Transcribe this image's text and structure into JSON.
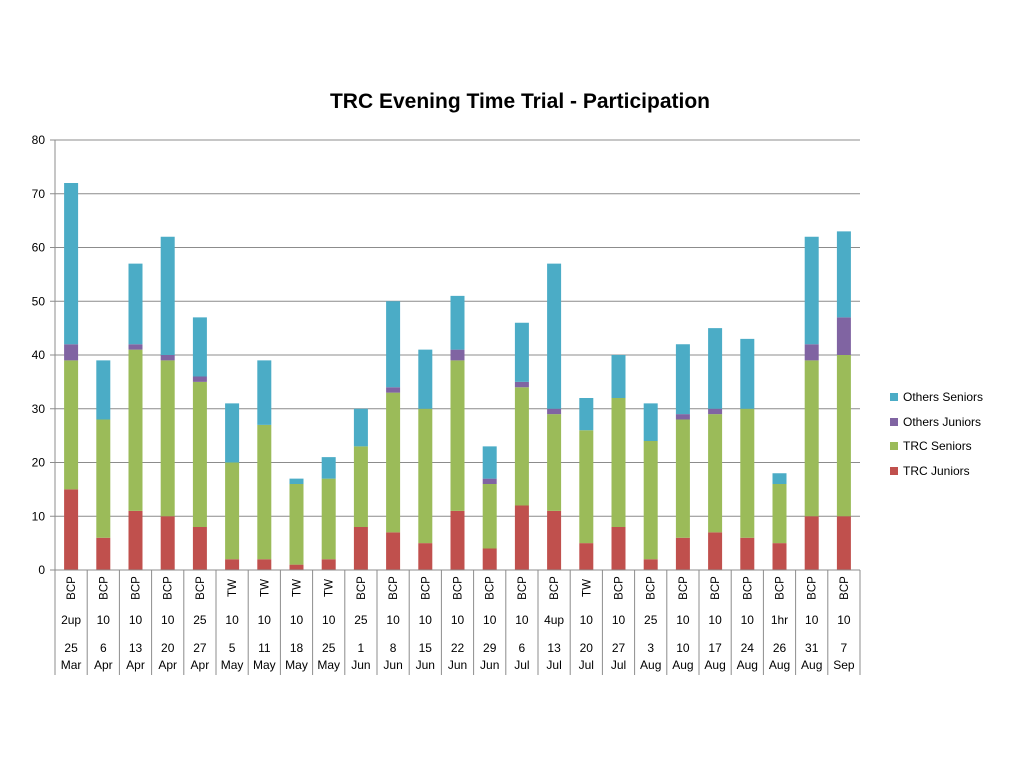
{
  "chart_data": {
    "type": "bar",
    "stacked": true,
    "title": "TRC Evening Time Trial - Participation",
    "ylim": [
      0,
      80
    ],
    "yticks": [
      0,
      10,
      20,
      30,
      40,
      50,
      60,
      70,
      80
    ],
    "grid": true,
    "legend_position": "right",
    "categories": [
      {
        "course": "BCP",
        "distance": "2up",
        "day": "25",
        "month": "Mar"
      },
      {
        "course": "BCP",
        "distance": "10",
        "day": "6",
        "month": "Apr"
      },
      {
        "course": "BCP",
        "distance": "10",
        "day": "13",
        "month": "Apr"
      },
      {
        "course": "BCP",
        "distance": "10",
        "day": "20",
        "month": "Apr"
      },
      {
        "course": "BCP",
        "distance": "25",
        "day": "27",
        "month": "Apr"
      },
      {
        "course": "TW",
        "distance": "10",
        "day": "5",
        "month": "May"
      },
      {
        "course": "TW",
        "distance": "10",
        "day": "11",
        "month": "May"
      },
      {
        "course": "TW",
        "distance": "10",
        "day": "18",
        "month": "May"
      },
      {
        "course": "TW",
        "distance": "10",
        "day": "25",
        "month": "May"
      },
      {
        "course": "BCP",
        "distance": "25",
        "day": "1",
        "month": "Jun"
      },
      {
        "course": "BCP",
        "distance": "10",
        "day": "8",
        "month": "Jun"
      },
      {
        "course": "BCP",
        "distance": "10",
        "day": "15",
        "month": "Jun"
      },
      {
        "course": "BCP",
        "distance": "10",
        "day": "22",
        "month": "Jun"
      },
      {
        "course": "BCP",
        "distance": "10",
        "day": "29",
        "month": "Jun"
      },
      {
        "course": "BCP",
        "distance": "10",
        "day": "6",
        "month": "Jul"
      },
      {
        "course": "BCP",
        "distance": "4up",
        "day": "13",
        "month": "Jul"
      },
      {
        "course": "TW",
        "distance": "10",
        "day": "20",
        "month": "Jul"
      },
      {
        "course": "BCP",
        "distance": "10",
        "day": "27",
        "month": "Jul"
      },
      {
        "course": "BCP",
        "distance": "25",
        "day": "3",
        "month": "Aug"
      },
      {
        "course": "BCP",
        "distance": "10",
        "day": "10",
        "month": "Aug"
      },
      {
        "course": "BCP",
        "distance": "10",
        "day": "17",
        "month": "Aug"
      },
      {
        "course": "BCP",
        "distance": "10",
        "day": "24",
        "month": "Aug"
      },
      {
        "course": "BCP",
        "distance": "1hr",
        "day": "26",
        "month": "Aug"
      },
      {
        "course": "BCP",
        "distance": "10",
        "day": "31",
        "month": "Aug"
      },
      {
        "course": "BCP",
        "distance": "10",
        "day": "7",
        "month": "Sep"
      }
    ],
    "series": [
      {
        "name": "TRC Juniors",
        "color": "#c0504d",
        "values": [
          15,
          6,
          11,
          10,
          8,
          2,
          2,
          1,
          2,
          8,
          7,
          5,
          11,
          4,
          12,
          11,
          5,
          8,
          2,
          6,
          7,
          6,
          5,
          10,
          10
        ]
      },
      {
        "name": "TRC Seniors",
        "color": "#9bbb59",
        "values": [
          24,
          22,
          30,
          29,
          27,
          18,
          25,
          15,
          15,
          15,
          26,
          25,
          28,
          12,
          22,
          18,
          21,
          24,
          22,
          22,
          22,
          24,
          11,
          29,
          30
        ]
      },
      {
        "name": "Others Juniors",
        "color": "#8064a2",
        "values": [
          3,
          0,
          1,
          1,
          1,
          0,
          0,
          0,
          0,
          0,
          1,
          0,
          2,
          1,
          1,
          1,
          0,
          0,
          0,
          1,
          1,
          0,
          0,
          3,
          7
        ]
      },
      {
        "name": "Others Seniors",
        "color": "#4bacc6",
        "values": [
          30,
          11,
          15,
          22,
          11,
          11,
          12,
          1,
          4,
          7,
          16,
          11,
          10,
          6,
          11,
          27,
          6,
          8,
          7,
          13,
          15,
          13,
          2,
          20,
          16
        ]
      }
    ]
  }
}
